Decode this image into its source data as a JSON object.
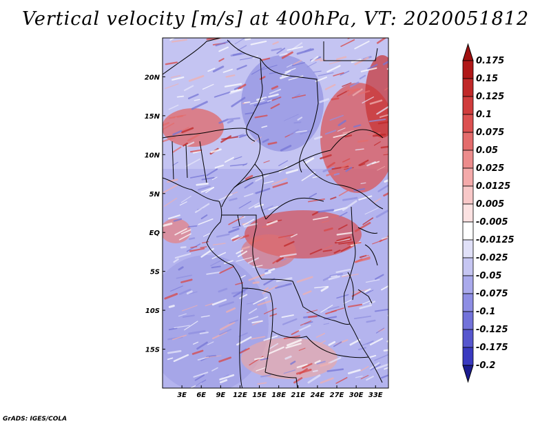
{
  "title": "Vertical velocity [m/s] at 400hPa, VT: 2020051812",
  "credit": "GrADS: IGES/COLA",
  "map": {
    "lon_range": [
      0,
      35
    ],
    "lat_range": [
      -20,
      25
    ],
    "lon_ticks": [
      {
        "value": 3,
        "label": "3E"
      },
      {
        "value": 6,
        "label": "6E"
      },
      {
        "value": 9,
        "label": "9E"
      },
      {
        "value": 12,
        "label": "12E"
      },
      {
        "value": 15,
        "label": "15E"
      },
      {
        "value": 18,
        "label": "18E"
      },
      {
        "value": 21,
        "label": "21E"
      },
      {
        "value": 24,
        "label": "24E"
      },
      {
        "value": 27,
        "label": "27E"
      },
      {
        "value": 30,
        "label": "30E"
      },
      {
        "value": 33,
        "label": "33E"
      }
    ],
    "lat_ticks": [
      {
        "value": 20,
        "label": "20N"
      },
      {
        "value": 15,
        "label": "15N"
      },
      {
        "value": 10,
        "label": "10N"
      },
      {
        "value": 5,
        "label": "5N"
      },
      {
        "value": 0,
        "label": "EQ"
      },
      {
        "value": -5,
        "label": "5S"
      },
      {
        "value": -10,
        "label": "10S"
      },
      {
        "value": -15,
        "label": "15S"
      }
    ]
  },
  "colorbar": {
    "levels": [
      {
        "label": "0.175",
        "color": "#b01818"
      },
      {
        "label": "0.15",
        "color": "#c02828"
      },
      {
        "label": "0.125",
        "color": "#d03c3c"
      },
      {
        "label": "0.1",
        "color": "#dc5050"
      },
      {
        "label": "0.075",
        "color": "#e46c6c"
      },
      {
        "label": "0.05",
        "color": "#ec8c8c"
      },
      {
        "label": "0.025",
        "color": "#f4aaaa"
      },
      {
        "label": "0.0125",
        "color": "#f8c8c8"
      },
      {
        "label": "0.005",
        "color": "#fce2e2"
      },
      {
        "label": "-0.005",
        "color": "#ffffff"
      },
      {
        "label": "-0.0125",
        "color": "#e0e0f8"
      },
      {
        "label": "-0.025",
        "color": "#c6c6f2"
      },
      {
        "label": "-0.05",
        "color": "#aaaaec"
      },
      {
        "label": "-0.075",
        "color": "#8e8ee4"
      },
      {
        "label": "-0.1",
        "color": "#7272da"
      },
      {
        "label": "-0.125",
        "color": "#5656ce"
      },
      {
        "label": "-0.175",
        "color": "#3a3ac0"
      },
      {
        "label": "-0.2",
        "color": "#2424a8"
      }
    ],
    "top_color": "#a01010",
    "bottom_color": "#1c1c90"
  }
}
